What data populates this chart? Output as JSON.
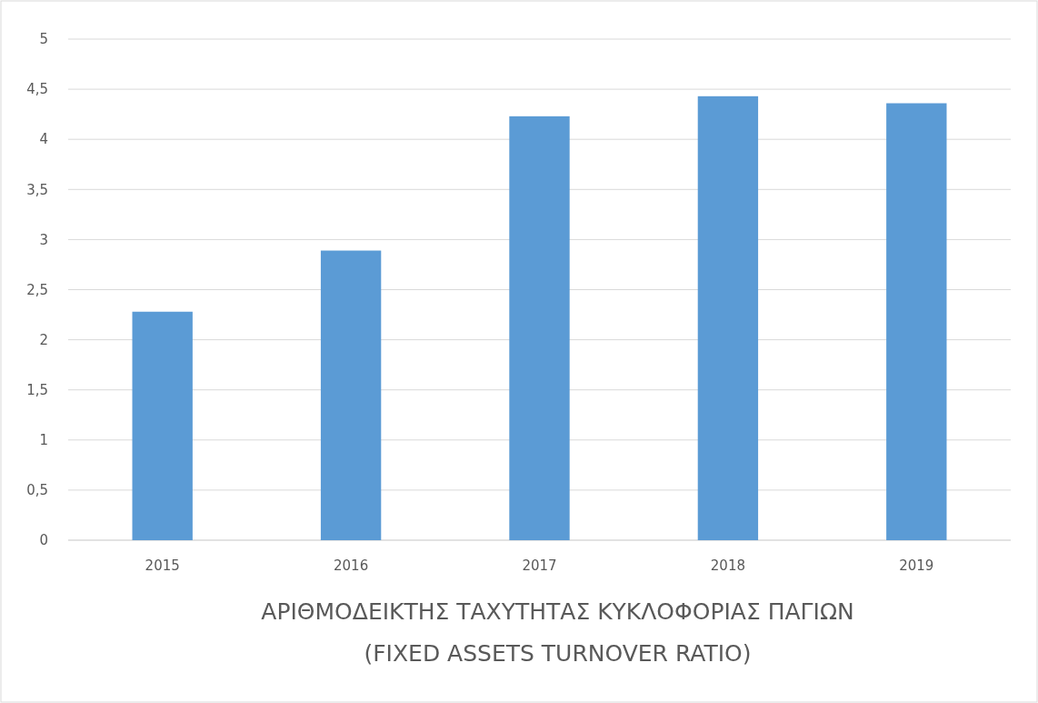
{
  "chart_data": {
    "type": "bar",
    "title": "ΑΡΙΘΜΟΔΕΙΚΤΗΣ ΤΑΧΥΤΗΤΑΣ ΚΥΚΛΟΦΟΡΙΑΣ ΠΑΓΙΩΝ",
    "subtitle": "(FIXED ASSETS TURNOVER RATIO)",
    "categories": [
      "2015",
      "2016",
      "2017",
      "2018",
      "2019"
    ],
    "values": [
      2.28,
      2.89,
      4.23,
      4.43,
      4.36
    ],
    "color": "#5b9bd5",
    "ylim": [
      0,
      5
    ],
    "yticks": [
      0,
      {
        "value": 0.5,
        "label": "0,5"
      },
      1,
      {
        "value": 1.5,
        "label": "1,5"
      },
      2,
      {
        "value": 2.5,
        "label": "2,5"
      },
      3,
      {
        "value": 3.5,
        "label": "3,5"
      },
      4,
      {
        "value": 4.5,
        "label": "4,5"
      },
      5
    ],
    "grid": "y"
  }
}
